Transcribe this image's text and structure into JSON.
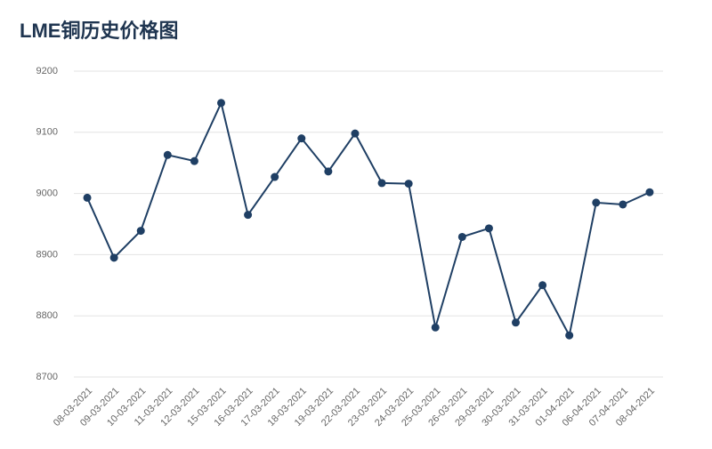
{
  "chart_data": {
    "type": "line",
    "title": "LME铜历史价格图",
    "categories": [
      "08-03-2021",
      "09-03-2021",
      "10-03-2021",
      "11-03-2021",
      "12-03-2021",
      "15-03-2021",
      "16-03-2021",
      "17-03-2021",
      "18-03-2021",
      "19-03-2021",
      "22-03-2021",
      "23-03-2021",
      "24-03-2021",
      "25-03-2021",
      "26-03-2021",
      "29-03-2021",
      "30-03-2021",
      "31-03-2021",
      "01-04-2021",
      "06-04-2021",
      "07-04-2021",
      "08-04-2021"
    ],
    "values": [
      8993,
      8895,
      8939,
      9063,
      9053,
      9148,
      8965,
      9027,
      9090,
      9036,
      9098,
      9017,
      9016,
      8781,
      8929,
      8943,
      8789,
      8850,
      8768,
      8985,
      8982,
      9002
    ],
    "color": "#1f3f64",
    "ylim": [
      8700,
      9200
    ],
    "yticks": [
      8700,
      8800,
      8900,
      9000,
      9100,
      9200
    ],
    "grid": true
  }
}
